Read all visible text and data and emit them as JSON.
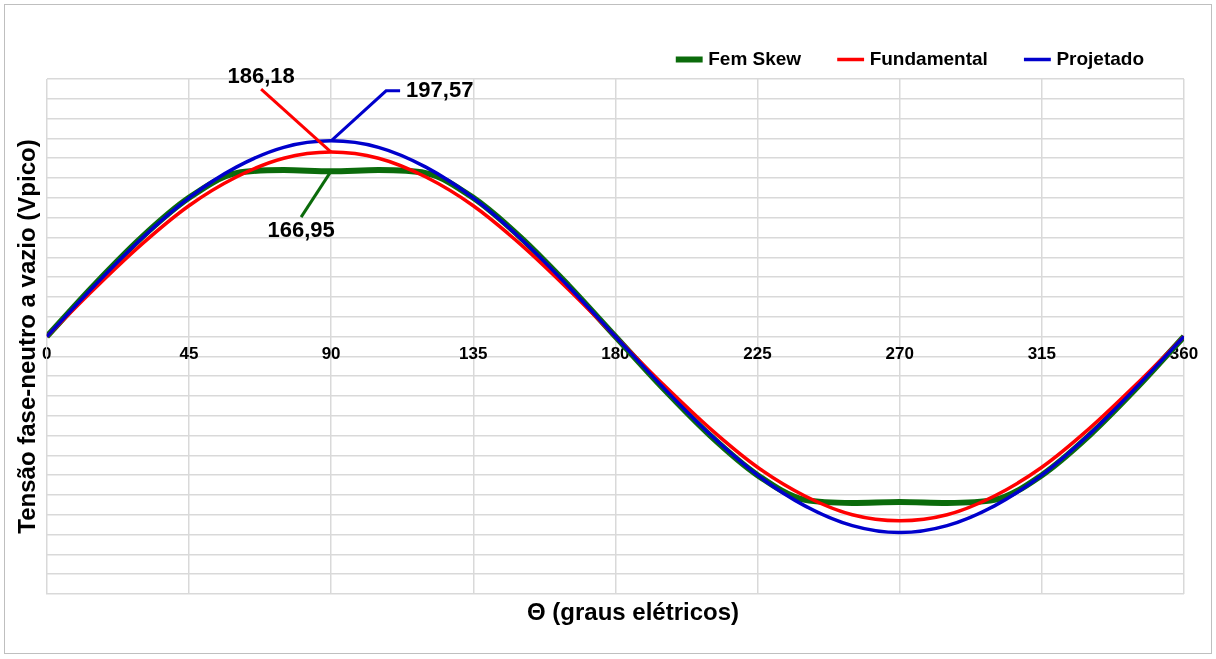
{
  "chart_data": {
    "type": "line",
    "xlabel": "Θ (graus elétricos)",
    "ylabel": "Tensão fase-neutro a vazio (Vpico)",
    "x": [
      0,
      15,
      30,
      45,
      60,
      75,
      90,
      105,
      120,
      135,
      150,
      165,
      180,
      195,
      210,
      225,
      240,
      255,
      270,
      285,
      300,
      315,
      330,
      345,
      360
    ],
    "series": [
      {
        "name": "Fem Skew",
        "color": "#0b6b0b",
        "values": [
          0,
          52,
          100,
          140,
          165,
          168,
          166.95,
          168,
          165,
          140,
          100,
          52,
          0,
          -52,
          -100,
          -140,
          -165,
          -168,
          -167,
          -168,
          -165,
          -140,
          -100,
          -52,
          0
        ],
        "value_labels": [
          null,
          null,
          null,
          null,
          null,
          null,
          "166,95",
          null,
          null,
          null,
          null,
          null,
          null,
          null,
          null,
          null,
          null,
          null,
          null,
          null,
          null,
          null,
          null,
          null,
          null
        ]
      },
      {
        "name": "Fundamental",
        "color": "#ff0000",
        "values": [
          0,
          48,
          93,
          132,
          161,
          180,
          186.18,
          180,
          161,
          132,
          93,
          48,
          0,
          -48,
          -93,
          -132,
          -161,
          -180,
          -186,
          -180,
          -161,
          -132,
          -93,
          -48,
          0
        ],
        "value_labels": [
          null,
          null,
          null,
          null,
          null,
          null,
          "186,18",
          null,
          null,
          null,
          null,
          null,
          null,
          null,
          null,
          null,
          null,
          null,
          null,
          null,
          null,
          null,
          null,
          null,
          null
        ]
      },
      {
        "name": "Projetado",
        "color": "#0000cc",
        "values": [
          0,
          51,
          99,
          140,
          171,
          191,
          197.57,
          191,
          171,
          140,
          99,
          51,
          0,
          -51,
          -99,
          -140,
          -171,
          -191,
          -198,
          -191,
          -171,
          -140,
          -99,
          -51,
          0
        ],
        "value_labels": [
          null,
          null,
          null,
          null,
          null,
          null,
          "197,57",
          null,
          null,
          null,
          null,
          null,
          null,
          null,
          null,
          null,
          null,
          null,
          null,
          null,
          null,
          null,
          null,
          null,
          null
        ]
      }
    ],
    "xlim": [
      0,
      360
    ],
    "xticks": [
      0,
      45,
      90,
      135,
      180,
      225,
      270,
      315,
      360
    ],
    "tick_labels": "x",
    "grid": true,
    "legend": "top right",
    "marker": "none",
    "line_style": "solid"
  }
}
